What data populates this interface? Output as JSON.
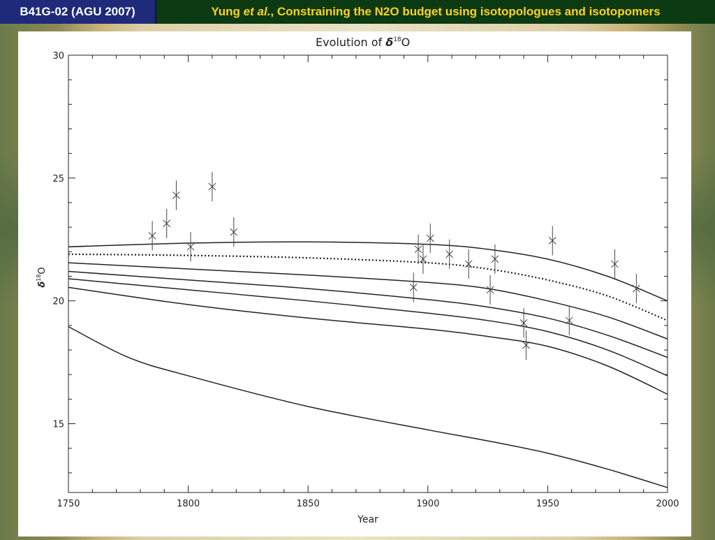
{
  "header": {
    "session": "B41G-02 (AGU 2007)",
    "author": "Yung ",
    "etal": "et al.",
    "title_rest": ", Constraining the N2O budget using isotopologues and isotopomers",
    "left_bg": "#1f2a7a",
    "right_bg": "#0c3a12",
    "title_color": "#ffd21f"
  },
  "chart_data": {
    "type": "line",
    "title": "Evolution of δ18O",
    "title_main": "Evolution of ",
    "title_delta": "δ",
    "title_sup": "18",
    "title_tail": "O",
    "xlabel": "Year",
    "ylabel": "δ18O",
    "ylabel_delta": "δ",
    "ylabel_sup": "18",
    "ylabel_tail": "O",
    "xlim": [
      1750,
      2000
    ],
    "ylim": [
      12.2,
      30
    ],
    "xticks": [
      1750,
      1800,
      1850,
      1900,
      1950,
      2000
    ],
    "yticks": [
      15,
      20,
      25,
      30
    ],
    "grid": false,
    "series": [
      {
        "style": "solid",
        "x": [
          1750,
          1800,
          1850,
          1900,
          1925,
          1950,
          1975,
          2000
        ],
        "y": [
          22.2,
          22.35,
          22.4,
          22.3,
          22.1,
          21.7,
          21.0,
          20.0
        ]
      },
      {
        "style": "dotted",
        "x": [
          1750,
          1800,
          1850,
          1900,
          1925,
          1950,
          1975,
          2000
        ],
        "y": [
          21.9,
          21.85,
          21.75,
          21.55,
          21.3,
          20.85,
          20.2,
          19.2
        ]
      },
      {
        "style": "solid",
        "x": [
          1750,
          1800,
          1850,
          1900,
          1925,
          1950,
          1975,
          2000
        ],
        "y": [
          21.55,
          21.3,
          21.05,
          20.75,
          20.5,
          20.0,
          19.35,
          18.45
        ]
      },
      {
        "style": "solid",
        "x": [
          1750,
          1800,
          1850,
          1900,
          1925,
          1950,
          1975,
          2000
        ],
        "y": [
          21.2,
          20.85,
          20.5,
          20.05,
          19.75,
          19.3,
          18.6,
          17.7
        ]
      },
      {
        "style": "solid",
        "x": [
          1750,
          1800,
          1850,
          1900,
          1925,
          1950,
          1975,
          2000
        ],
        "y": [
          20.9,
          20.45,
          20.0,
          19.5,
          19.2,
          18.75,
          18.0,
          16.95
        ]
      },
      {
        "style": "solid",
        "x": [
          1750,
          1800,
          1850,
          1900,
          1925,
          1950,
          1975,
          2000
        ],
        "y": [
          20.55,
          19.85,
          19.3,
          18.85,
          18.55,
          18.15,
          17.35,
          16.2
        ]
      },
      {
        "style": "solid",
        "x": [
          1750,
          1775,
          1800,
          1850,
          1900,
          1925,
          1950,
          1975,
          2000
        ],
        "y": [
          18.95,
          17.7,
          16.95,
          15.7,
          14.75,
          14.3,
          13.8,
          13.15,
          12.4
        ]
      }
    ],
    "points": {
      "marker": "x",
      "x": [
        1785,
        1791,
        1795,
        1801,
        1810,
        1819,
        1894,
        1896,
        1898,
        1901,
        1909,
        1917,
        1926,
        1928,
        1940,
        1941,
        1952,
        1959,
        1978,
        1987
      ],
      "y": [
        22.65,
        23.15,
        24.3,
        22.2,
        24.65,
        22.8,
        20.55,
        22.1,
        21.7,
        22.55,
        21.9,
        21.5,
        20.45,
        21.7,
        19.1,
        18.2,
        22.45,
        19.2,
        21.5,
        20.5
      ],
      "err": [
        0.6,
        0.6,
        0.6,
        0.6,
        0.6,
        0.6,
        0.6,
        0.6,
        0.6,
        0.6,
        0.6,
        0.6,
        0.6,
        0.6,
        0.6,
        0.6,
        0.6,
        0.6,
        0.6,
        0.6
      ]
    }
  }
}
